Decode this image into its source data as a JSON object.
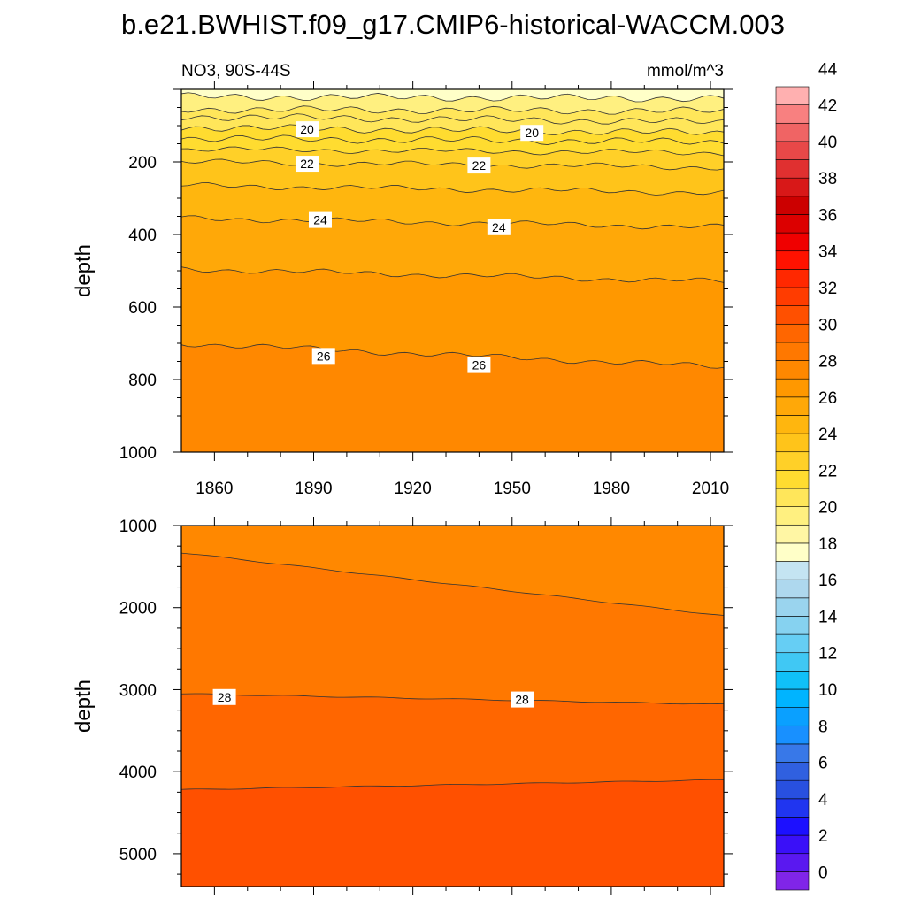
{
  "title": "b.e21.BWHIST.f09_g17.CMIP6-historical-WACCM.003",
  "chart_data": [
    {
      "type": "contour",
      "panel": "upper",
      "title_left": "NO3, 90S-44S",
      "title_right": "mmol/m^3",
      "xlabel": "",
      "ylabel": "depth",
      "xlim": [
        1850,
        2014
      ],
      "ylim": [
        1000,
        0
      ],
      "xticks": [
        "1860",
        "1890",
        "1920",
        "1950",
        "1980",
        "2010"
      ],
      "yticks": [
        "200",
        "400",
        "600",
        "800",
        "1000"
      ],
      "contours": [
        {
          "level": 17,
          "depth_start": 20,
          "depth_end": 25
        },
        {
          "level": 19,
          "depth_start": 55,
          "depth_end": 60
        },
        {
          "level": 19.5,
          "depth_start": 75,
          "depth_end": 90
        },
        {
          "level": 20,
          "depth_start": 105,
          "depth_end": 120
        },
        {
          "level": 20.5,
          "depth_start": 135,
          "depth_end": 145
        },
        {
          "level": 21,
          "depth_start": 165,
          "depth_end": 175
        },
        {
          "level": 22,
          "depth_start": 200,
          "depth_end": 215
        },
        {
          "level": 23,
          "depth_start": 265,
          "depth_end": 285
        },
        {
          "level": 24,
          "depth_start": 355,
          "depth_end": 380
        },
        {
          "level": 25,
          "depth_start": 495,
          "depth_end": 530
        },
        {
          "level": 26,
          "depth_start": 700,
          "depth_end": 765
        }
      ],
      "contour_labels": [
        {
          "text": "20",
          "year": 1888,
          "depth": 110
        },
        {
          "text": "20",
          "year": 1956,
          "depth": 120
        },
        {
          "text": "22",
          "year": 1888,
          "depth": 205
        },
        {
          "text": "22",
          "year": 1940,
          "depth": 210
        },
        {
          "text": "24",
          "year": 1892,
          "depth": 360
        },
        {
          "text": "24",
          "year": 1946,
          "depth": 380
        },
        {
          "text": "26",
          "year": 1893,
          "depth": 735
        },
        {
          "text": "26",
          "year": 1940,
          "depth": 760
        }
      ]
    },
    {
      "type": "contour",
      "panel": "lower",
      "xlabel": "",
      "ylabel": "depth",
      "xlim": [
        1850,
        2014
      ],
      "ylim": [
        5400,
        1000
      ],
      "yticks": [
        "1000",
        "2000",
        "3000",
        "4000",
        "5000"
      ],
      "contours": [
        {
          "level": 27,
          "depth_start": 1330,
          "depth_end": 2100
        },
        {
          "level": 28,
          "depth_start": 3050,
          "depth_end": 3180
        },
        {
          "level": 29,
          "depth_start": 4220,
          "depth_end": 4100
        }
      ],
      "contour_labels": [
        {
          "text": "28",
          "year": 1863,
          "depth": 3090
        },
        {
          "text": "28",
          "year": 1953,
          "depth": 3120
        }
      ]
    }
  ],
  "colorbar": {
    "labels": [
      "0",
      "2",
      "4",
      "6",
      "8",
      "10",
      "12",
      "14",
      "16",
      "18",
      "20",
      "22",
      "24",
      "26",
      "28",
      "30",
      "32",
      "34",
      "36",
      "38",
      "40",
      "42",
      "44"
    ],
    "colors": [
      "#8025e8",
      "#5a18f0",
      "#3a10f8",
      "#1c10ff",
      "#2035f0",
      "#2850e0",
      "#3060e0",
      "#3878e8",
      "#1890ff",
      "#0aa0ff",
      "#00b4ff",
      "#10c0f8",
      "#40c8f4",
      "#66cef4",
      "#86d2f0",
      "#9ad4ee",
      "#aed8ee",
      "#c4e4f2",
      "#ffffc8",
      "#fff6a4",
      "#fff080",
      "#ffe65a",
      "#ffdc30",
      "#ffd028",
      "#ffc41a",
      "#ffb60e",
      "#ffa808",
      "#ff9800",
      "#ff8800",
      "#ff7800",
      "#ff6600",
      "#ff5000",
      "#ff3c00",
      "#ff2800",
      "#ff1200",
      "#f00000",
      "#dc0000",
      "#cc0000",
      "#d81818",
      "#e03030",
      "#e84848",
      "#f06464",
      "#f88080",
      "#ffb0b0"
    ]
  }
}
